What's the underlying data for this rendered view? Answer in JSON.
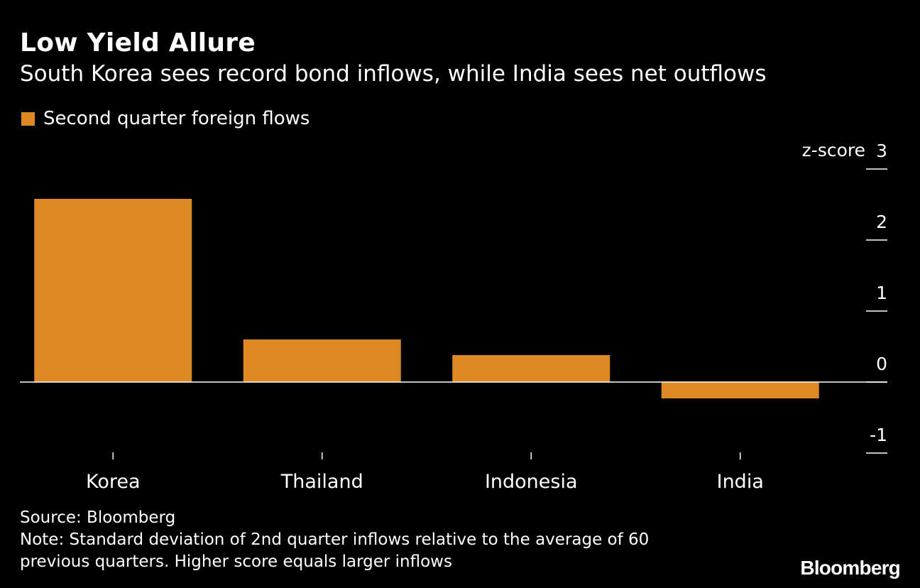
{
  "chart_data": {
    "type": "bar",
    "title": "Low Yield Allure",
    "subtitle": "South Korea sees record bond inflows, while India sees net outflows",
    "legend": [
      "Second quarter foreign flows"
    ],
    "categories": [
      "Korea",
      "Thailand",
      "Indonesia",
      "India"
    ],
    "series": [
      {
        "name": "Second quarter foreign flows",
        "values": [
          2.58,
          0.6,
          0.38,
          -0.23
        ]
      }
    ],
    "ylabel": "z-score",
    "ylim": [
      -1,
      3
    ],
    "yticks": [
      3,
      2,
      1,
      0,
      -1
    ],
    "ytick_labels": [
      "3",
      "2",
      "1",
      "0",
      "-1"
    ],
    "legend_position": "top-left",
    "y_axis_position": "right",
    "bar_color": "#dd8a26"
  },
  "footer": {
    "source": "Source: Bloomberg",
    "note_line1": "Note: Standard deviation of 2nd quarter inflows relative to the average of 60",
    "note_line2": "previous quarters. Higher score equals larger inflows"
  },
  "brand": "Bloomberg"
}
